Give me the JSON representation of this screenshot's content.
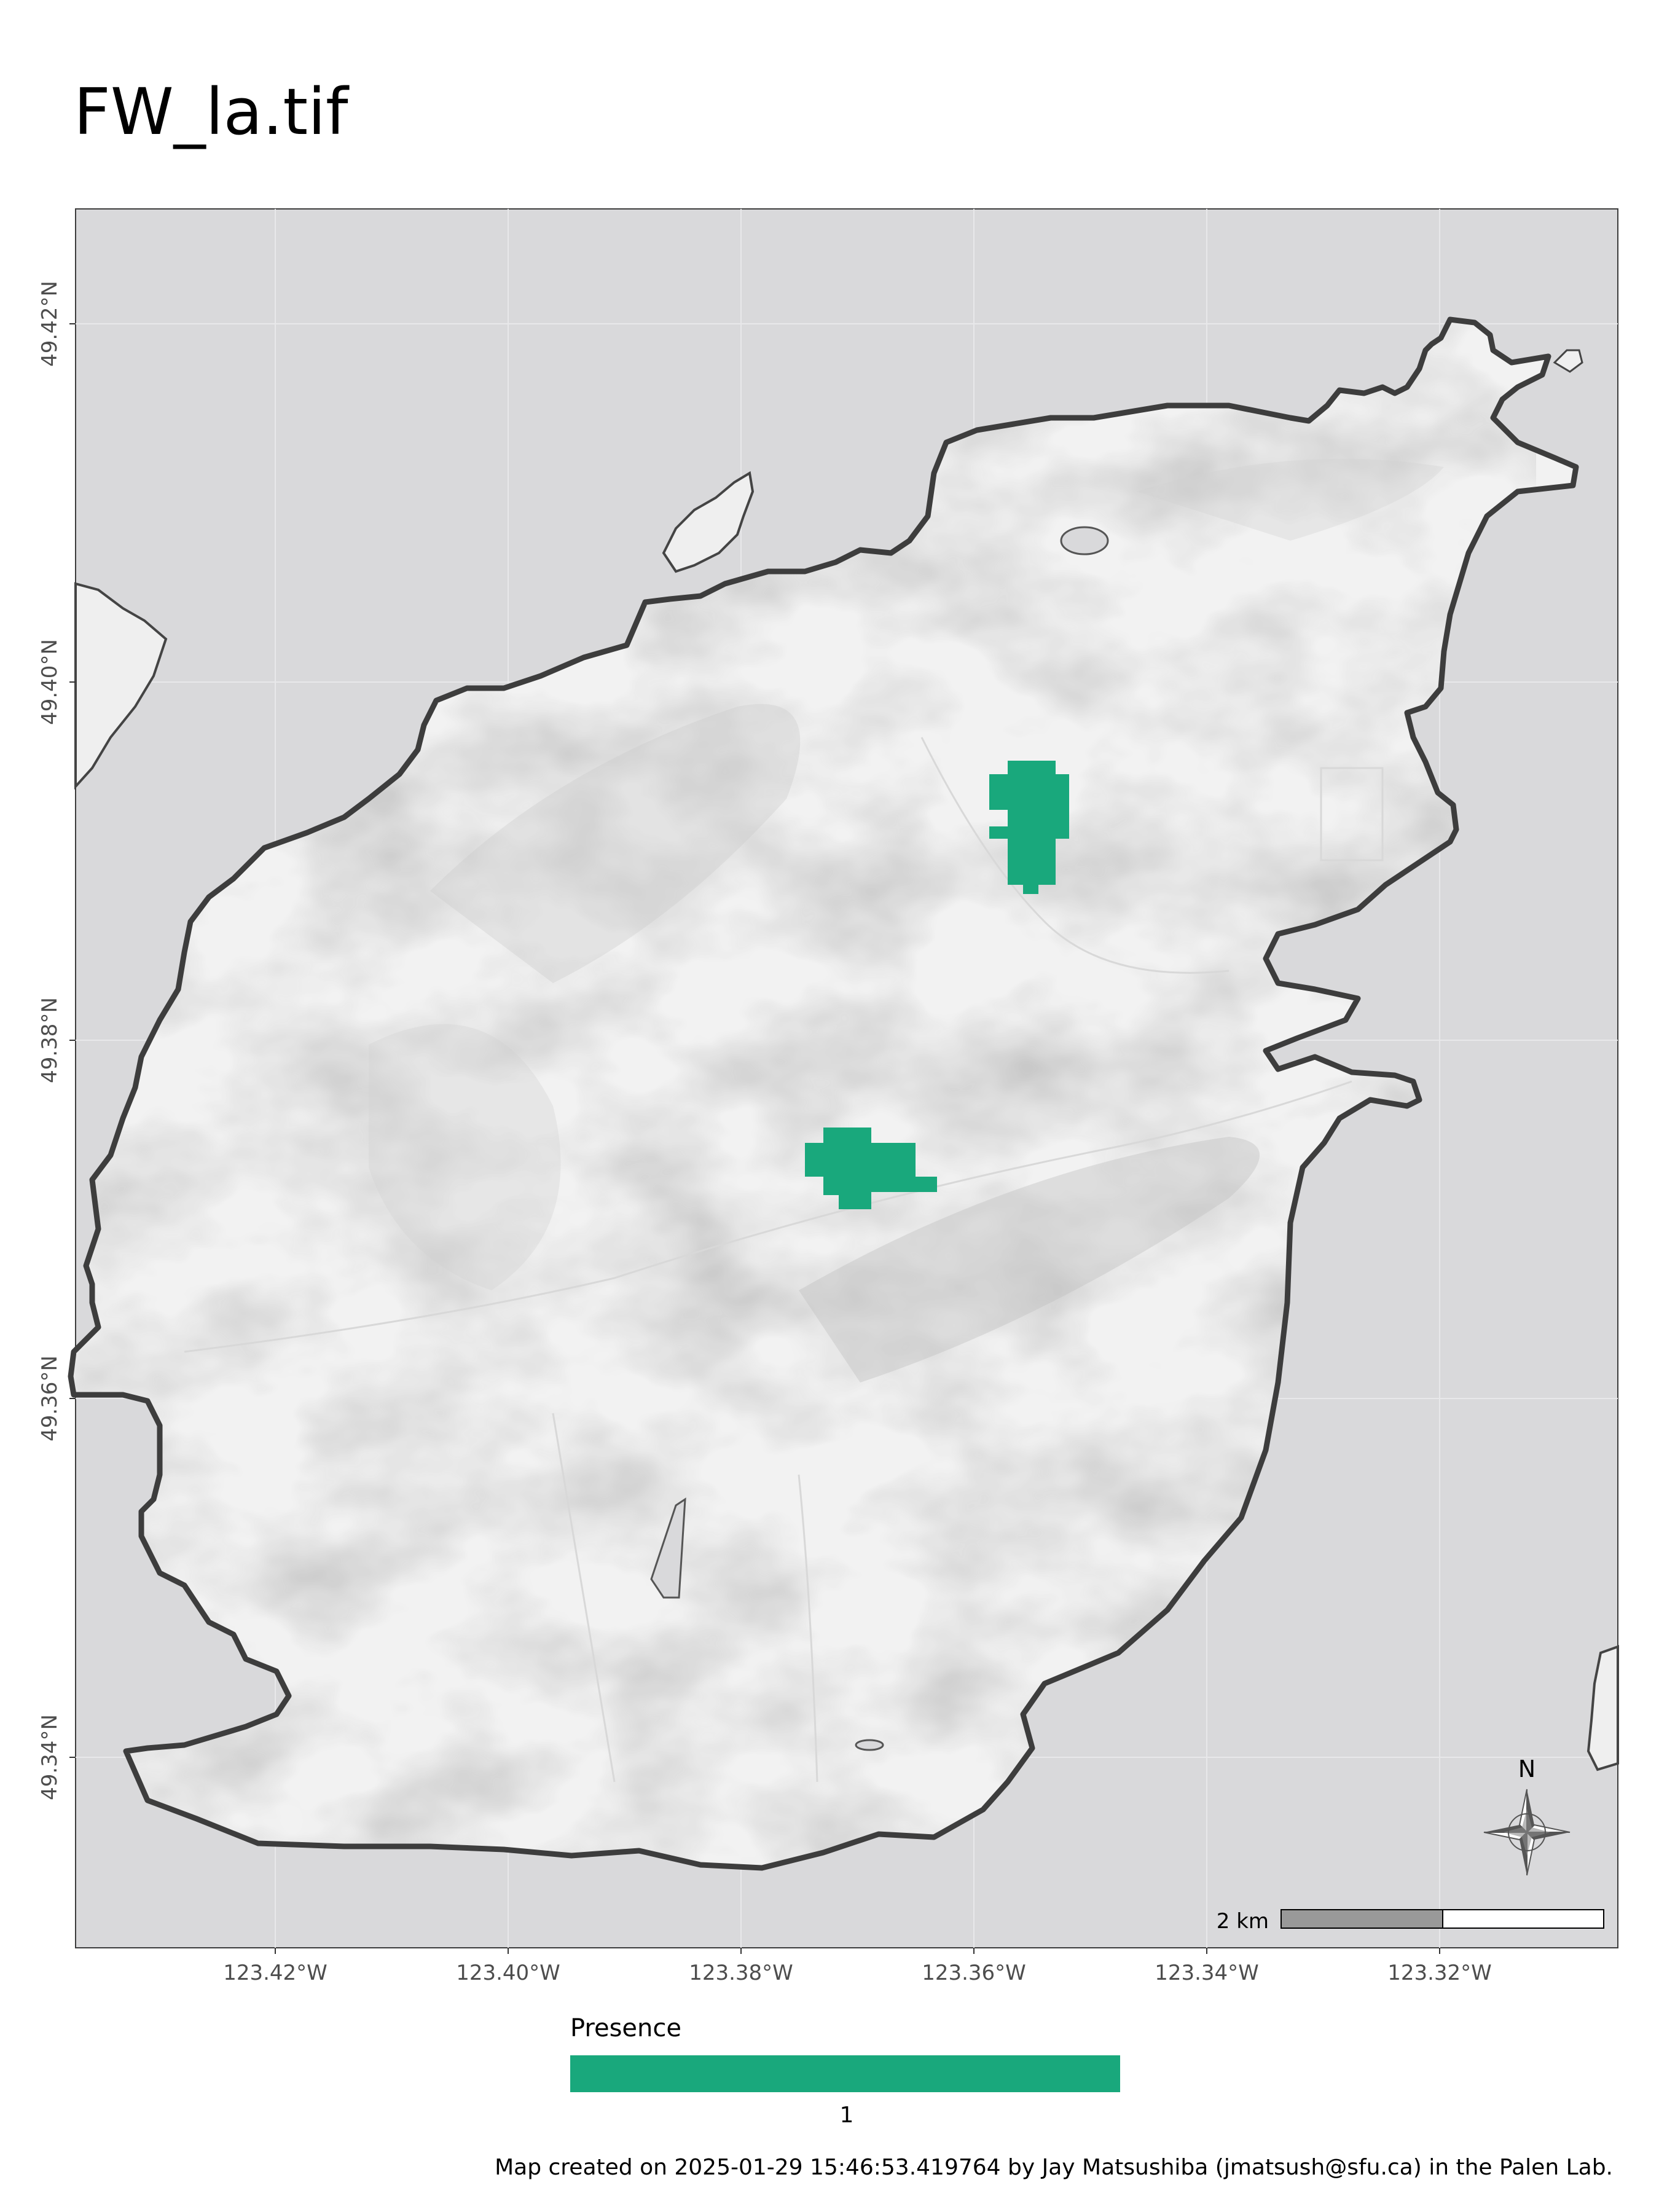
{
  "title": "FW_la.tif",
  "map": {
    "background_color": "#d9d9db",
    "land_color": "#f2f2f2",
    "outline_color": "#3d3d3d",
    "presence_color": "#19a87c",
    "lat_labels": [
      "49.42°N",
      "49.40°N",
      "49.38°N",
      "49.36°N",
      "49.34°N"
    ],
    "lon_labels": [
      "123.42°W",
      "123.40°W",
      "123.38°W",
      "123.36°W",
      "123.34°W",
      "123.32°W"
    ],
    "north_arrow": {
      "letter": "N",
      "icon": "compass-rose-icon"
    },
    "scale_bar": {
      "label": "2 km"
    }
  },
  "legend": {
    "title": "Presence",
    "tick": "1",
    "color": "#19a87c"
  },
  "caption": "Map created on 2025-01-29 15:46:53.419764 by Jay Matsushiba (jmatsush@sfu.ca) in the Palen Lab."
}
